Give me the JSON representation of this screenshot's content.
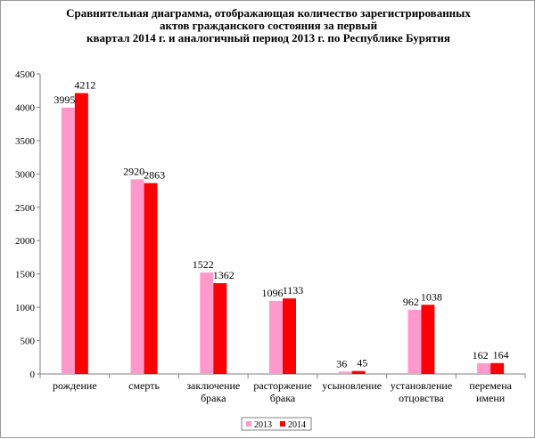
{
  "chart_data": {
    "type": "bar",
    "title_lines": [
      "Сравнительная диаграмма, отображающая количество зарегистрированных",
      "актов гражданского состояния за первый",
      "квартал 2014 г. и аналогичный период 2013 г. по Республике Бурятия"
    ],
    "categories": [
      [
        "рождение"
      ],
      [
        "смерть"
      ],
      [
        "заключение",
        "брака"
      ],
      [
        "расторжение",
        "брака"
      ],
      [
        "усыновление"
      ],
      [
        "установление",
        "отцовства"
      ],
      [
        "перемена",
        "имени"
      ]
    ],
    "series": [
      {
        "name": "2013",
        "color": "#ff99cc",
        "values": [
          3995,
          2920,
          1522,
          1096,
          36,
          962,
          162
        ]
      },
      {
        "name": "2014",
        "color": "#ff0000",
        "values": [
          4212,
          2863,
          1362,
          1133,
          45,
          1038,
          164
        ]
      }
    ],
    "ylim": [
      0,
      4500
    ],
    "yticks": [
      0,
      500,
      1000,
      1500,
      2000,
      2500,
      3000,
      3500,
      4000,
      4500
    ],
    "grid": false,
    "legend_position": "bottom"
  }
}
